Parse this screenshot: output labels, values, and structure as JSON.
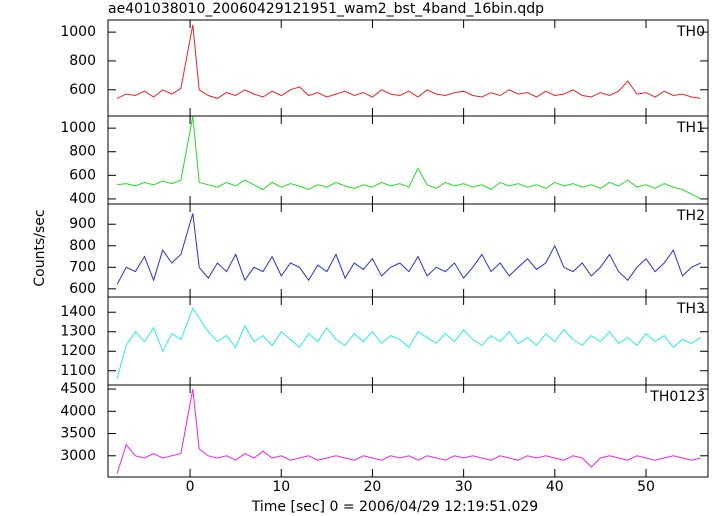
{
  "chart_data": {
    "type": "line",
    "title": "ae401038010_20060429121951_wam2_bst_4band_16bin.qdp",
    "x_label": "Time [sec] 0 = 2006/04/29 12:19:51.029",
    "y_label": "Counts/sec",
    "xlim": [
      -9,
      56.8
    ],
    "xticks": [
      0,
      10,
      20,
      30,
      40,
      50
    ],
    "x": [
      -8,
      -7,
      -6,
      -5,
      -4,
      -3,
      -2,
      -1,
      0.3,
      1,
      2,
      3,
      4,
      5,
      6,
      7,
      8,
      9,
      10,
      11,
      12,
      13,
      14,
      15,
      16,
      17,
      18,
      19,
      20,
      21,
      22,
      23,
      24,
      25,
      26,
      27,
      28,
      29,
      30,
      31,
      32,
      33,
      34,
      35,
      36,
      37,
      38,
      39,
      40,
      41,
      42,
      43,
      44,
      45,
      46,
      47,
      48,
      49,
      50,
      51,
      52,
      53,
      54,
      55,
      56
    ],
    "panels": [
      {
        "name": "TH0",
        "color": "#ee2222",
        "ylim": [
          418,
          1084
        ],
        "yticks": [
          600,
          800,
          1000
        ],
        "values": [
          540,
          570,
          560,
          590,
          550,
          600,
          570,
          610,
          1050,
          600,
          560,
          540,
          580,
          560,
          600,
          570,
          550,
          590,
          560,
          600,
          620,
          560,
          580,
          550,
          570,
          590,
          560,
          580,
          550,
          600,
          570,
          560,
          590,
          550,
          600,
          570,
          560,
          580,
          590,
          560,
          550,
          580,
          560,
          600,
          570,
          580,
          550,
          590,
          560,
          570,
          600,
          560,
          550,
          580,
          560,
          590,
          660,
          570,
          580,
          550,
          590,
          560,
          570,
          550,
          540
        ]
      },
      {
        "name": "TH1",
        "color": "#22dd22",
        "ylim": [
          357,
          1103
        ],
        "yticks": [
          400,
          600,
          800,
          1000
        ],
        "values": [
          520,
          530,
          510,
          540,
          520,
          550,
          530,
          560,
          1100,
          540,
          520,
          500,
          540,
          510,
          560,
          520,
          480,
          540,
          500,
          530,
          510,
          480,
          520,
          500,
          540,
          510,
          490,
          520,
          500,
          540,
          510,
          530,
          500,
          660,
          520,
          490,
          540,
          510,
          530,
          500,
          520,
          480,
          540,
          510,
          530,
          500,
          520,
          490,
          540,
          510,
          530,
          500,
          520,
          490,
          540,
          510,
          560,
          500,
          520,
          490,
          530,
          500,
          480,
          440,
          400
        ]
      },
      {
        "name": "TH2",
        "color": "#2233dd",
        "ylim": [
          562,
          994
        ],
        "yticks": [
          600,
          700,
          800,
          900
        ],
        "values": [
          620,
          700,
          680,
          750,
          640,
          780,
          720,
          760,
          950,
          700,
          650,
          720,
          680,
          760,
          640,
          700,
          680,
          750,
          660,
          720,
          700,
          640,
          710,
          680,
          760,
          650,
          720,
          690,
          740,
          660,
          700,
          720,
          680,
          750,
          660,
          700,
          680,
          720,
          650,
          700,
          760,
          680,
          720,
          660,
          700,
          740,
          690,
          720,
          800,
          700,
          680,
          720,
          660,
          700,
          760,
          680,
          640,
          700,
          740,
          680,
          720,
          780,
          660,
          700,
          720
        ]
      },
      {
        "name": "TH3",
        "color": "#22eeee",
        "ylim": [
          1027,
          1478
        ],
        "yticks": [
          1100,
          1200,
          1300,
          1400
        ],
        "values": [
          1060,
          1230,
          1300,
          1250,
          1320,
          1200,
          1290,
          1260,
          1420,
          1370,
          1300,
          1250,
          1280,
          1220,
          1330,
          1250,
          1280,
          1230,
          1300,
          1260,
          1220,
          1290,
          1250,
          1320,
          1260,
          1230,
          1290,
          1250,
          1300,
          1240,
          1280,
          1260,
          1220,
          1300,
          1270,
          1240,
          1290,
          1250,
          1310,
          1260,
          1230,
          1280,
          1250,
          1300,
          1240,
          1270,
          1230,
          1290,
          1250,
          1310,
          1260,
          1230,
          1280,
          1250,
          1300,
          1240,
          1270,
          1230,
          1290,
          1250,
          1280,
          1220,
          1260,
          1240,
          1270
        ]
      },
      {
        "name": "TH0123",
        "color": "#ee22ee",
        "ylim": [
          2523,
          4591
        ],
        "yticks": [
          3000,
          3500,
          4000,
          4500
        ],
        "values": [
          2600,
          3250,
          3000,
          2950,
          3050,
          2950,
          3000,
          3050,
          4500,
          3150,
          3000,
          2950,
          3000,
          2900,
          3050,
          2950,
          3100,
          2950,
          3000,
          2900,
          2950,
          3000,
          2900,
          2950,
          3000,
          2950,
          2900,
          3000,
          2950,
          2900,
          3000,
          2950,
          3000,
          2900,
          3000,
          2950,
          2900,
          3000,
          2950,
          3000,
          2950,
          2900,
          3000,
          2950,
          2900,
          3000,
          2950,
          3000,
          2950,
          2900,
          3000,
          2950,
          2750,
          2950,
          3000,
          2950,
          2900,
          3000,
          2950,
          2900,
          2950,
          3000,
          2950,
          2900,
          2950
        ]
      }
    ]
  }
}
